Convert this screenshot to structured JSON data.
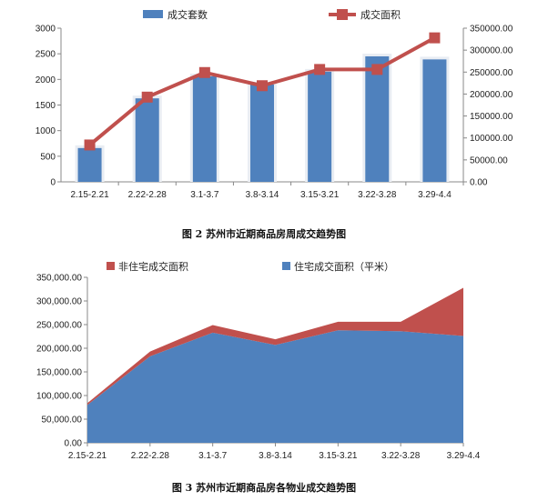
{
  "chart_data": [
    {
      "type": "bar+line",
      "title": "图 2 苏州市近期商品房周成交趋势图",
      "categories": [
        "2.15-2.21",
        "2.22-2.28",
        "3.1-3.7",
        "3.8-3.14",
        "3.15-3.21",
        "3.22-3.28",
        "3.29-4.4"
      ],
      "series": [
        {
          "name": "成交套数",
          "type": "bar",
          "axis": "left",
          "color": "#4f81bd",
          "values": [
            660,
            1630,
            2060,
            1900,
            2150,
            2450,
            2390
          ]
        },
        {
          "name": "成交面积",
          "type": "line",
          "axis": "right",
          "color": "#c0504d",
          "values": [
            84000,
            193000,
            249000,
            219000,
            256000,
            256000,
            328000
          ]
        }
      ],
      "y_left": {
        "min": 0,
        "max": 3000,
        "ticks": [
          "0",
          "500",
          "1000",
          "1500",
          "2000",
          "2500",
          "3000"
        ]
      },
      "y_right": {
        "min": 0,
        "max": 350000,
        "ticks": [
          "0.00",
          "50000.00",
          "100000.00",
          "150000.00",
          "200000.00",
          "250000.00",
          "300000.00",
          "350000.00"
        ]
      },
      "legend_position": "top"
    },
    {
      "type": "area",
      "stacked": true,
      "title": "图 3 苏州市近期商品房各物业成交趋势图",
      "categories": [
        "2.15-2.21",
        "2.22-2.28",
        "3.1-3.7",
        "3.8-3.14",
        "3.15-3.21",
        "3.22-3.28",
        "3.29-4.4"
      ],
      "series": [
        {
          "name": "住宅成交面积（平米）",
          "color": "#4f81bd",
          "values": [
            80000,
            183000,
            233000,
            207000,
            238000,
            236000,
            226000
          ]
        },
        {
          "name": "非住宅成交面积",
          "color": "#c0504d",
          "values": [
            4000,
            10000,
            16000,
            12000,
            18000,
            20000,
            102000
          ]
        }
      ],
      "y": {
        "min": 0,
        "max": 350000,
        "ticks": [
          "0.00",
          "50,000.00",
          "100,000.00",
          "150,000.00",
          "200,000.00",
          "250,000.00",
          "300,000.00",
          "350,000.00"
        ]
      },
      "legend_position": "top"
    }
  ]
}
